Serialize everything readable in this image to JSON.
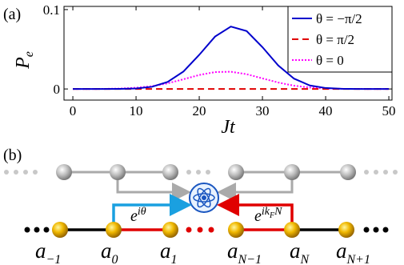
{
  "chart_data": {
    "type": "line",
    "panel_label": "(a)",
    "ylabel": [
      "P",
      "e"
    ],
    "xlabel": "Jt",
    "x": [
      0,
      2.5,
      5,
      7.5,
      10,
      12.5,
      15,
      17.5,
      20,
      22.5,
      25,
      27.5,
      30,
      32.5,
      35,
      37.5,
      40,
      42.5,
      45,
      47.5,
      50
    ],
    "series": [
      {
        "name": "θ = −π/2",
        "color": "#0000cc",
        "dash": "solid",
        "values": [
          0,
          0,
          0,
          0.0001,
          0.0006,
          0.0027,
          0.0088,
          0.022,
          0.043,
          0.066,
          0.0786,
          0.073,
          0.0527,
          0.0296,
          0.013,
          0.0044,
          0.0012,
          0.0002,
          0,
          0,
          0
        ]
      },
      {
        "name": "θ = π/2",
        "color": "#e00000",
        "dash": "dashed",
        "values": [
          0,
          0,
          0,
          0,
          0,
          0,
          0,
          0,
          0,
          0,
          0,
          0,
          0,
          0,
          0,
          0,
          0,
          0,
          0,
          0,
          0
        ]
      },
      {
        "name": "θ = 0",
        "color": "#ff00ff",
        "dash": "dotted",
        "values": [
          0,
          0,
          0.0001,
          0.0005,
          0.0015,
          0.0035,
          0.0071,
          0.0122,
          0.0176,
          0.0213,
          0.0217,
          0.0186,
          0.0133,
          0.0081,
          0.0041,
          0.0018,
          0.0006,
          0.0002,
          0.0001,
          0,
          0
        ]
      }
    ],
    "xlim": [
      -1.4,
      50.5
    ],
    "ylim": [
      -0.014,
      0.104
    ],
    "xticks": [
      0,
      10,
      20,
      30,
      40,
      50
    ],
    "yticks": [
      0,
      0.1
    ],
    "legend": "upper right"
  },
  "diagram": {
    "panel_label": "(b)",
    "phase_left": {
      "base": "e",
      "sup": "iθ"
    },
    "phase_right": {
      "base": "e",
      "sup": "ik",
      "sup_sub": "F",
      "sup_end": "N"
    },
    "sites": [
      {
        "base": "a",
        "sub": "−1"
      },
      {
        "base": "a",
        "sub": "0"
      },
      {
        "base": "a",
        "sub": "1"
      },
      {
        "base": "a",
        "sub": "N−1"
      },
      {
        "base": "a",
        "sub": "N"
      },
      {
        "base": "a",
        "sub": "N+1"
      }
    ]
  }
}
